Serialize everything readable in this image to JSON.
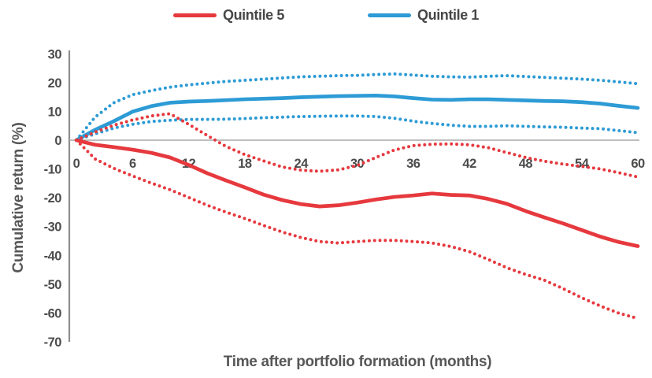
{
  "figure": {
    "legend": [
      {
        "id": "quintile-5",
        "label": "Quintile 5",
        "color": "#e6393e"
      },
      {
        "id": "quintile-1",
        "label": "Quintile 1",
        "color": "#2d9bd5"
      }
    ],
    "colors": {
      "red": "#e6393e",
      "blue": "#2d9bd5",
      "axis_line": "#8d8d8d",
      "zero_line": "#a9a9a9",
      "text": "#4c4c4c"
    },
    "y_axis": {
      "title": "Cumulative return (%)",
      "ticks": [
        30,
        20,
        10,
        0,
        -10,
        -20,
        -30,
        -40,
        -50,
        -60,
        -70
      ]
    },
    "x_axis": {
      "title": "Time after portfolio formation (months)",
      "ticks": [
        0,
        6,
        12,
        18,
        24,
        30,
        36,
        42,
        48,
        54,
        60
      ]
    }
  },
  "chart_data": {
    "type": "line",
    "xlabel": "Time after portfolio formation (months)",
    "ylabel": "Cumulative return (%)",
    "xlim": [
      0,
      60
    ],
    "ylim": [
      -70,
      30
    ],
    "grid": false,
    "zero_line": true,
    "legend_position": "top-center",
    "x": [
      0,
      2,
      4,
      6,
      8,
      10,
      12,
      14,
      16,
      18,
      20,
      22,
      24,
      26,
      28,
      30,
      32,
      34,
      36,
      38,
      40,
      42,
      44,
      46,
      48,
      50,
      52,
      54,
      56,
      58,
      60
    ],
    "series": [
      {
        "id": "quintile-1-upper-band",
        "name": "Quintile 1 upper dotted band",
        "style": "dotted",
        "color": "#2d9bd5",
        "values": [
          0,
          8,
          13,
          15.8,
          17.2,
          18.4,
          19.2,
          19.8,
          20.4,
          20.8,
          21.2,
          21.6,
          22,
          22.2,
          22.4,
          22.5,
          22.8,
          23,
          22.6,
          22.2,
          22,
          21.9,
          22.2,
          22.4,
          22.1,
          21.8,
          21.5,
          21.2,
          20.8,
          20.2,
          19.6
        ]
      },
      {
        "id": "quintile-1-lower-band",
        "name": "Quintile 1 lower dotted band",
        "style": "dotted",
        "color": "#2d9bd5",
        "values": [
          0,
          2.2,
          4.2,
          5.5,
          6.5,
          6.9,
          7.2,
          7.2,
          7.3,
          7.5,
          7.8,
          8,
          8.2,
          8.3,
          8.4,
          8.4,
          8.2,
          7.6,
          6.6,
          5.8,
          5.2,
          4.8,
          4.8,
          5,
          4.8,
          4.6,
          4.5,
          4.2,
          4,
          3.3,
          2.6
        ]
      },
      {
        "id": "quintile-1",
        "name": "Quintile 1",
        "style": "solid",
        "color": "#2d9bd5",
        "values": [
          0,
          3.6,
          6.6,
          9.9,
          11.8,
          13,
          13.4,
          13.6,
          13.9,
          14.2,
          14.4,
          14.6,
          14.9,
          15.1,
          15.3,
          15.4,
          15.5,
          15.2,
          14.6,
          14.1,
          14,
          14.2,
          14.2,
          14,
          13.8,
          13.6,
          13.5,
          13.2,
          12.7,
          11.9,
          11.2
        ]
      },
      {
        "id": "quintile-5-upper-band",
        "name": "Quintile 5 upper dotted band",
        "style": "dotted",
        "color": "#e6393e",
        "values": [
          0,
          2.8,
          5.2,
          7,
          8.4,
          9.2,
          5.5,
          1.6,
          -2.2,
          -5,
          -7.2,
          -9.3,
          -10.4,
          -10.8,
          -10.3,
          -8.8,
          -6,
          -3.4,
          -1.9,
          -1.4,
          -1.3,
          -1.6,
          -2.6,
          -4.3,
          -6,
          -7.3,
          -8.3,
          -9.1,
          -10,
          -11.3,
          -12.8
        ]
      },
      {
        "id": "quintile-5-lower-band",
        "name": "Quintile 5 lower dotted band",
        "style": "dotted",
        "color": "#e6393e",
        "values": [
          0,
          -6.5,
          -9.8,
          -12.4,
          -14.9,
          -17.2,
          -19.9,
          -22.6,
          -25,
          -27.2,
          -29.6,
          -31.9,
          -33.8,
          -35.2,
          -35.7,
          -35.2,
          -34.8,
          -34.8,
          -35.2,
          -35.7,
          -36.9,
          -38.7,
          -41.4,
          -44.3,
          -46.6,
          -48.6,
          -51.5,
          -54.7,
          -57.6,
          -60.1,
          -61.9
        ]
      },
      {
        "id": "quintile-5",
        "name": "Quintile 5",
        "style": "solid",
        "color": "#e6393e",
        "values": [
          0,
          -1.6,
          -2.4,
          -3.3,
          -4.4,
          -6,
          -8.6,
          -11.5,
          -14,
          -16.4,
          -18.9,
          -20.8,
          -22.2,
          -23,
          -22.6,
          -21.7,
          -20.6,
          -19.7,
          -19.2,
          -18.5,
          -19,
          -19.2,
          -20.4,
          -22.1,
          -24.6,
          -26.8,
          -28.9,
          -31.2,
          -33.5,
          -35.4,
          -36.8
        ]
      }
    ]
  }
}
